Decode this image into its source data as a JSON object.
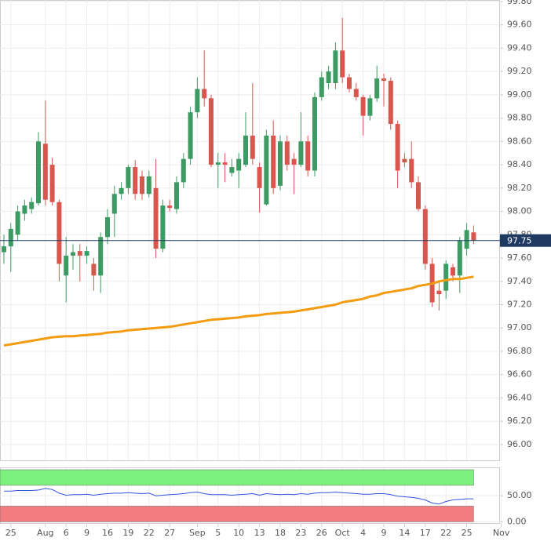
{
  "chart_data": [
    {
      "type": "candlestick",
      "categories": [
        null,
        "25",
        null,
        null,
        null,
        null,
        "Aug",
        null,
        null,
        "6",
        null,
        null,
        "9",
        null,
        null,
        "16",
        null,
        null,
        "19",
        null,
        null,
        "22",
        null,
        null,
        "27",
        null,
        null,
        null,
        "Sep",
        null,
        null,
        "5",
        null,
        null,
        "10",
        null,
        null,
        "13",
        null,
        null,
        "18",
        null,
        null,
        "23",
        null,
        null,
        "26",
        null,
        null,
        "Oct",
        null,
        null,
        "4",
        null,
        null,
        "9",
        null,
        null,
        "14",
        null,
        null,
        "17",
        null,
        null,
        "22",
        null,
        null,
        "25",
        null,
        null,
        null,
        null,
        "Nov"
      ],
      "open": [
        97.65,
        97.7,
        97.8,
        97.98,
        98.02,
        98.07,
        98.58,
        98.4,
        98.08,
        97.45,
        97.62,
        97.66,
        97.62,
        97.55,
        97.45,
        97.78,
        97.98,
        98.15,
        98.2,
        98.38,
        98.3,
        98.15,
        98.2,
        97.68,
        98.05,
        98.02,
        98.25,
        98.45,
        98.85,
        99.05,
        98.97,
        98.4,
        98.42,
        98.33,
        98.35,
        98.4,
        98.65,
        98.38,
        98.06,
        98.65,
        98.22,
        98.6,
        98.45,
        98.4,
        98.6,
        98.35,
        98.98,
        99.1,
        99.1,
        99.38,
        99.15,
        99.05,
        98.98,
        98.82,
        98.97,
        99.14,
        99.12,
        98.75,
        98.45,
        98.45,
        98.25,
        98.02,
        97.55,
        97.32,
        97.32,
        97.52,
        97.45,
        97.68,
        97.82,
        null,
        null,
        null,
        null
      ],
      "high": [
        97.8,
        97.9,
        98.05,
        98.1,
        98.12,
        98.68,
        98.95,
        98.46,
        98.1,
        97.78,
        97.72,
        97.72,
        97.7,
        97.6,
        97.82,
        98.02,
        98.22,
        98.25,
        98.4,
        98.44,
        98.35,
        98.35,
        98.45,
        98.1,
        98.1,
        98.3,
        98.5,
        98.9,
        99.15,
        99.38,
        99.0,
        98.5,
        98.5,
        98.45,
        98.5,
        98.85,
        99.1,
        98.42,
        98.7,
        98.78,
        98.65,
        98.65,
        98.5,
        98.85,
        98.65,
        99.02,
        99.2,
        99.25,
        99.45,
        99.66,
        99.18,
        99.1,
        99.0,
        99.0,
        99.25,
        99.18,
        99.15,
        98.78,
        98.5,
        98.6,
        98.3,
        98.05,
        97.6,
        97.4,
        97.58,
        97.55,
        97.78,
        97.9,
        97.88,
        null,
        null,
        null,
        null
      ],
      "low": [
        97.55,
        97.48,
        97.75,
        97.92,
        97.98,
        98.05,
        98.05,
        98.05,
        97.4,
        97.22,
        97.5,
        97.4,
        97.55,
        97.32,
        97.3,
        97.72,
        97.78,
        98.1,
        98.15,
        98.1,
        98.1,
        98.12,
        97.6,
        97.65,
        98.0,
        97.98,
        98.2,
        98.4,
        98.8,
        98.9,
        98.38,
        98.2,
        98.25,
        98.3,
        98.2,
        98.38,
        98.4,
        97.99,
        98.05,
        98.15,
        98.18,
        98.35,
        98.15,
        98.38,
        98.3,
        98.3,
        98.95,
        99.05,
        99.05,
        99.1,
        99.02,
        98.95,
        98.65,
        98.78,
        98.94,
        98.9,
        98.7,
        98.2,
        98.38,
        98.2,
        98.0,
        97.5,
        97.18,
        97.15,
        97.25,
        97.4,
        97.3,
        97.62,
        97.72,
        null,
        null,
        null,
        null
      ],
      "close": [
        97.7,
        97.85,
        98.0,
        98.05,
        98.08,
        98.6,
        98.1,
        98.08,
        97.55,
        97.62,
        97.65,
        97.62,
        97.66,
        97.45,
        97.78,
        97.95,
        98.15,
        98.2,
        98.38,
        98.15,
        98.15,
        98.3,
        97.68,
        98.05,
        98.03,
        98.25,
        98.45,
        98.85,
        99.05,
        98.97,
        98.4,
        98.42,
        98.4,
        98.38,
        98.45,
        98.65,
        98.45,
        98.2,
        98.65,
        98.2,
        98.6,
        98.4,
        98.4,
        98.6,
        98.35,
        98.98,
        99.15,
        99.2,
        99.38,
        99.15,
        99.05,
        98.98,
        98.82,
        98.97,
        99.14,
        99.12,
        98.75,
        98.35,
        98.42,
        98.25,
        98.02,
        97.55,
        97.22,
        97.29,
        97.55,
        97.45,
        97.75,
        97.84,
        97.75,
        null,
        null,
        null,
        null
      ],
      "up_color": "#3d9a62",
      "down_color": "#d9564f",
      "moving_average": {
        "color": "#f39c12",
        "values": [
          96.85,
          96.86,
          96.87,
          96.88,
          96.89,
          96.9,
          96.91,
          96.92,
          96.925,
          96.93,
          96.93,
          96.935,
          96.94,
          96.945,
          96.95,
          96.96,
          96.965,
          96.97,
          96.98,
          96.985,
          96.99,
          96.995,
          97.0,
          97.005,
          97.01,
          97.02,
          97.03,
          97.04,
          97.05,
          97.06,
          97.07,
          97.075,
          97.08,
          97.085,
          97.09,
          97.1,
          97.105,
          97.11,
          97.12,
          97.125,
          97.13,
          97.135,
          97.14,
          97.15,
          97.16,
          97.17,
          97.18,
          97.19,
          97.2,
          97.22,
          97.23,
          97.24,
          97.25,
          97.27,
          97.28,
          97.3,
          97.31,
          97.32,
          97.33,
          97.34,
          97.36,
          97.37,
          97.38,
          97.4,
          97.41,
          97.42,
          97.42,
          97.43,
          97.44,
          null,
          null,
          null,
          null
        ]
      },
      "last_price": 97.75,
      "last_price_color": "#1f3a60",
      "ylim": [
        95.865,
        99.813
      ],
      "yticks": [
        {
          "value": 96.0,
          "label": "96.00"
        },
        {
          "value": 96.2,
          "label": "96.20"
        },
        {
          "value": 96.4,
          "label": "96.40"
        },
        {
          "value": 96.6,
          "label": "96.60"
        },
        {
          "value": 96.8,
          "label": "96.80"
        },
        {
          "value": 97.0,
          "label": "97.00"
        },
        {
          "value": 97.2,
          "label": "97.20"
        },
        {
          "value": 97.4,
          "label": "97.40"
        },
        {
          "value": 97.6,
          "label": "97.60"
        },
        {
          "value": 97.8,
          "label": "97.80"
        },
        {
          "value": 98.0,
          "label": "98.00"
        },
        {
          "value": 98.2,
          "label": "98.20"
        },
        {
          "value": 98.4,
          "label": "98.40"
        },
        {
          "value": 98.6,
          "label": "98.60"
        },
        {
          "value": 98.8,
          "label": "98.80"
        },
        {
          "value": 99.0,
          "label": "99.00"
        },
        {
          "value": 99.2,
          "label": "99.20"
        },
        {
          "value": 99.4,
          "label": "99.40"
        },
        {
          "value": 99.6,
          "label": "99.60"
        },
        {
          "value": 99.8,
          "label": "99.80"
        }
      ],
      "grid": true
    },
    {
      "type": "line",
      "values": [
        59,
        59,
        60,
        60,
        60,
        61,
        64,
        62,
        55,
        51,
        52,
        52,
        53,
        51,
        53,
        54,
        55,
        55,
        56,
        55,
        54,
        55,
        50,
        51,
        52,
        53,
        54,
        56,
        57,
        54,
        52,
        52,
        52,
        51,
        52,
        53,
        54,
        51,
        54,
        53,
        52,
        53,
        52,
        54,
        53,
        55,
        56,
        56,
        57,
        56,
        55,
        54,
        53,
        53,
        54,
        54,
        52,
        49,
        48,
        47,
        45,
        42,
        36,
        34,
        39,
        42,
        43,
        44,
        44,
        null,
        null,
        null,
        null
      ],
      "color": "#3355dd",
      "bands": [
        {
          "from": 70,
          "to": 100,
          "color": "#7ef07e"
        },
        {
          "from": 0,
          "to": 30,
          "color": "#f27c80"
        }
      ],
      "ylim": [
        -4,
        103
      ],
      "yticks": [
        {
          "value": 50,
          "label": "50.00"
        },
        {
          "value": 0,
          "label": "0.00"
        }
      ],
      "grid": true
    }
  ]
}
